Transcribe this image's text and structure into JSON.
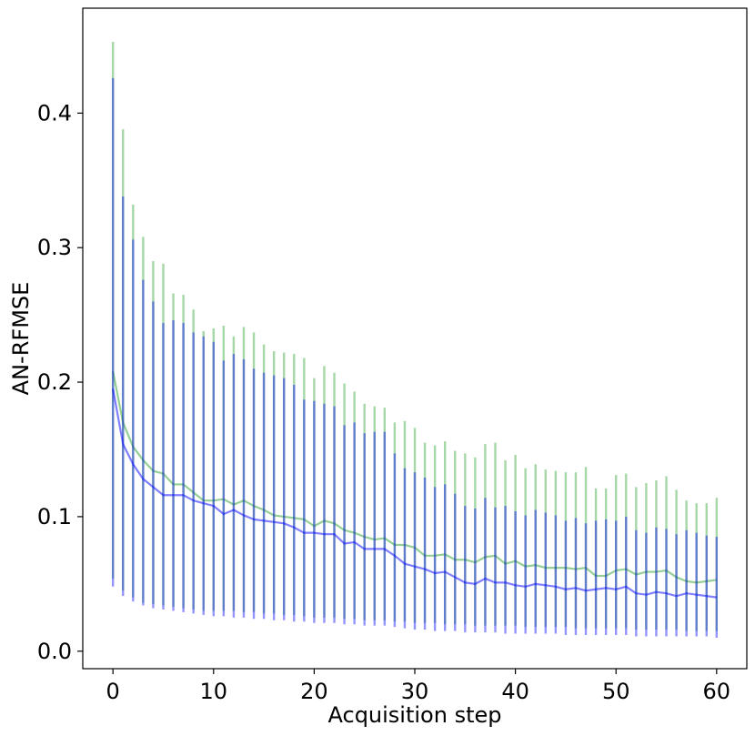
{
  "chart_data": {
    "type": "line",
    "title": "",
    "xlabel": "Acquisition step",
    "ylabel": "AN-RFMSE",
    "xlim": [
      -3,
      63
    ],
    "ylim": [
      -0.013,
      0.478
    ],
    "xticks": [
      0,
      10,
      20,
      30,
      40,
      50,
      60
    ],
    "xtick_labels": [
      "0",
      "10",
      "20",
      "30",
      "40",
      "50",
      "60"
    ],
    "yticks": [
      0.0,
      0.1,
      0.2,
      0.3,
      0.4
    ],
    "ytick_labels": [
      "0.0",
      "0.1",
      "0.2",
      "0.3",
      "0.4"
    ],
    "grid": false,
    "legend": "none",
    "error_bars": "vertical bars around each point",
    "x": [
      0,
      1,
      2,
      3,
      4,
      5,
      6,
      7,
      8,
      9,
      10,
      11,
      12,
      13,
      14,
      15,
      16,
      17,
      18,
      19,
      20,
      21,
      22,
      23,
      24,
      25,
      26,
      27,
      28,
      29,
      30,
      31,
      32,
      33,
      34,
      35,
      36,
      37,
      38,
      39,
      40,
      41,
      42,
      43,
      44,
      45,
      46,
      47,
      48,
      49,
      50,
      51,
      52,
      53,
      54,
      55,
      56,
      57,
      58,
      59,
      60
    ],
    "series": [
      {
        "color": "#2ca02c",
        "mean": [
          0.208,
          0.17,
          0.152,
          0.142,
          0.134,
          0.132,
          0.124,
          0.124,
          0.118,
          0.112,
          0.112,
          0.113,
          0.109,
          0.112,
          0.108,
          0.105,
          0.101,
          0.1,
          0.099,
          0.098,
          0.093,
          0.097,
          0.095,
          0.09,
          0.088,
          0.085,
          0.083,
          0.084,
          0.079,
          0.079,
          0.077,
          0.071,
          0.071,
          0.072,
          0.068,
          0.068,
          0.066,
          0.07,
          0.071,
          0.065,
          0.067,
          0.063,
          0.064,
          0.062,
          0.062,
          0.062,
          0.061,
          0.062,
          0.056,
          0.056,
          0.06,
          0.061,
          0.057,
          0.059,
          0.059,
          0.06,
          0.055,
          0.052,
          0.051,
          0.052,
          0.053
        ],
        "lower": [
          0.054,
          0.045,
          0.04,
          0.036,
          0.035,
          0.034,
          0.033,
          0.032,
          0.031,
          0.03,
          0.03,
          0.03,
          0.03,
          0.029,
          0.029,
          0.028,
          0.028,
          0.027,
          0.027,
          0.026,
          0.025,
          0.025,
          0.025,
          0.024,
          0.024,
          0.023,
          0.023,
          0.023,
          0.022,
          0.022,
          0.021,
          0.021,
          0.021,
          0.02,
          0.02,
          0.02,
          0.019,
          0.019,
          0.019,
          0.019,
          0.019,
          0.018,
          0.018,
          0.018,
          0.018,
          0.018,
          0.017,
          0.017,
          0.017,
          0.017,
          0.017,
          0.017,
          0.016,
          0.016,
          0.016,
          0.016,
          0.016,
          0.015,
          0.015,
          0.015,
          0.015
        ],
        "upper": [
          0.453,
          0.388,
          0.332,
          0.308,
          0.29,
          0.288,
          0.266,
          0.265,
          0.254,
          0.238,
          0.24,
          0.242,
          0.234,
          0.241,
          0.237,
          0.228,
          0.223,
          0.222,
          0.221,
          0.218,
          0.203,
          0.212,
          0.207,
          0.199,
          0.193,
          0.184,
          0.182,
          0.181,
          0.17,
          0.171,
          0.166,
          0.155,
          0.153,
          0.156,
          0.149,
          0.147,
          0.144,
          0.154,
          0.155,
          0.142,
          0.146,
          0.136,
          0.139,
          0.135,
          0.134,
          0.133,
          0.133,
          0.137,
          0.121,
          0.121,
          0.131,
          0.132,
          0.122,
          0.125,
          0.127,
          0.13,
          0.12,
          0.112,
          0.11,
          0.11,
          0.114
        ]
      },
      {
        "color": "#0000ff",
        "mean": [
          0.195,
          0.154,
          0.139,
          0.128,
          0.122,
          0.116,
          0.116,
          0.116,
          0.112,
          0.11,
          0.108,
          0.102,
          0.105,
          0.101,
          0.098,
          0.097,
          0.096,
          0.095,
          0.092,
          0.088,
          0.088,
          0.087,
          0.087,
          0.08,
          0.081,
          0.076,
          0.076,
          0.076,
          0.071,
          0.065,
          0.063,
          0.061,
          0.058,
          0.059,
          0.055,
          0.051,
          0.05,
          0.054,
          0.051,
          0.051,
          0.049,
          0.048,
          0.05,
          0.049,
          0.048,
          0.046,
          0.047,
          0.045,
          0.046,
          0.047,
          0.046,
          0.048,
          0.043,
          0.042,
          0.044,
          0.043,
          0.041,
          0.043,
          0.042,
          0.041,
          0.04
        ],
        "lower": [
          0.048,
          0.041,
          0.037,
          0.034,
          0.032,
          0.031,
          0.03,
          0.029,
          0.028,
          0.027,
          0.026,
          0.026,
          0.025,
          0.025,
          0.024,
          0.024,
          0.023,
          0.023,
          0.022,
          0.022,
          0.021,
          0.021,
          0.021,
          0.02,
          0.02,
          0.019,
          0.019,
          0.019,
          0.018,
          0.017,
          0.016,
          0.016,
          0.015,
          0.015,
          0.015,
          0.014,
          0.014,
          0.014,
          0.014,
          0.013,
          0.013,
          0.013,
          0.013,
          0.013,
          0.013,
          0.012,
          0.012,
          0.012,
          0.012,
          0.012,
          0.012,
          0.012,
          0.011,
          0.011,
          0.011,
          0.011,
          0.011,
          0.011,
          0.011,
          0.011,
          0.01
        ],
        "upper": [
          0.426,
          0.338,
          0.306,
          0.276,
          0.26,
          0.244,
          0.246,
          0.244,
          0.237,
          0.234,
          0.23,
          0.216,
          0.221,
          0.217,
          0.21,
          0.207,
          0.205,
          0.203,
          0.198,
          0.187,
          0.186,
          0.184,
          0.182,
          0.168,
          0.17,
          0.162,
          0.163,
          0.163,
          0.147,
          0.136,
          0.133,
          0.129,
          0.122,
          0.124,
          0.117,
          0.108,
          0.106,
          0.114,
          0.107,
          0.108,
          0.104,
          0.101,
          0.105,
          0.103,
          0.101,
          0.097,
          0.099,
          0.095,
          0.097,
          0.098,
          0.097,
          0.1,
          0.09,
          0.088,
          0.092,
          0.091,
          0.087,
          0.09,
          0.088,
          0.086,
          0.085
        ]
      }
    ]
  }
}
